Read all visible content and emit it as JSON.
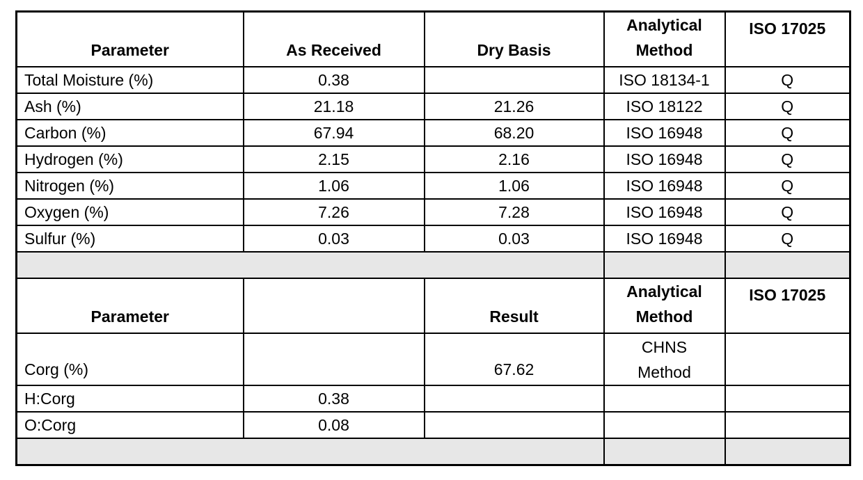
{
  "colors": {
    "grid": "#000000",
    "separator_fill": "#e7e7e7",
    "text": "#000000",
    "background": "#ffffff"
  },
  "proximate_table": {
    "headers": {
      "parameter": "Parameter",
      "as_received": "As Received",
      "dry_basis": "Dry Basis",
      "method": "Analytical\nMethod",
      "iso": "ISO 17025"
    },
    "rows": [
      {
        "parameter": "Total Moisture (%)",
        "as_received": "0.38",
        "dry_basis": "",
        "method": "ISO 18134-1",
        "iso": "Q"
      },
      {
        "parameter": "Ash (%)",
        "as_received": "21.18",
        "dry_basis": "21.26",
        "method": "ISO 18122",
        "iso": "Q"
      },
      {
        "parameter": "Carbon (%)",
        "as_received": "67.94",
        "dry_basis": "68.20",
        "method": "ISO 16948",
        "iso": "Q"
      },
      {
        "parameter": "Hydrogen (%)",
        "as_received": "2.15",
        "dry_basis": "2.16",
        "method": "ISO 16948",
        "iso": "Q"
      },
      {
        "parameter": "Nitrogen (%)",
        "as_received": "1.06",
        "dry_basis": "1.06",
        "method": "ISO 16948",
        "iso": "Q"
      },
      {
        "parameter": "Oxygen (%)",
        "as_received": "7.26",
        "dry_basis": "7.28",
        "method": "ISO 16948",
        "iso": "Q"
      },
      {
        "parameter": "Sulfur (%)",
        "as_received": "0.03",
        "dry_basis": "0.03",
        "method": "ISO 16948",
        "iso": "Q"
      }
    ]
  },
  "corg_table": {
    "headers": {
      "parameter": "Parameter",
      "col2": "",
      "result": "Result",
      "method": "Analytical\nMethod",
      "iso": "ISO 17025"
    },
    "rows": [
      {
        "parameter": "Corg (%)",
        "col2": "",
        "result": "67.62",
        "method": "CHNS\nMethod",
        "iso": ""
      },
      {
        "parameter": "H:Corg",
        "col2": "0.38",
        "result": "",
        "method": "",
        "iso": ""
      },
      {
        "parameter": "O:Corg",
        "col2": "0.08",
        "result": "",
        "method": "",
        "iso": ""
      }
    ]
  }
}
